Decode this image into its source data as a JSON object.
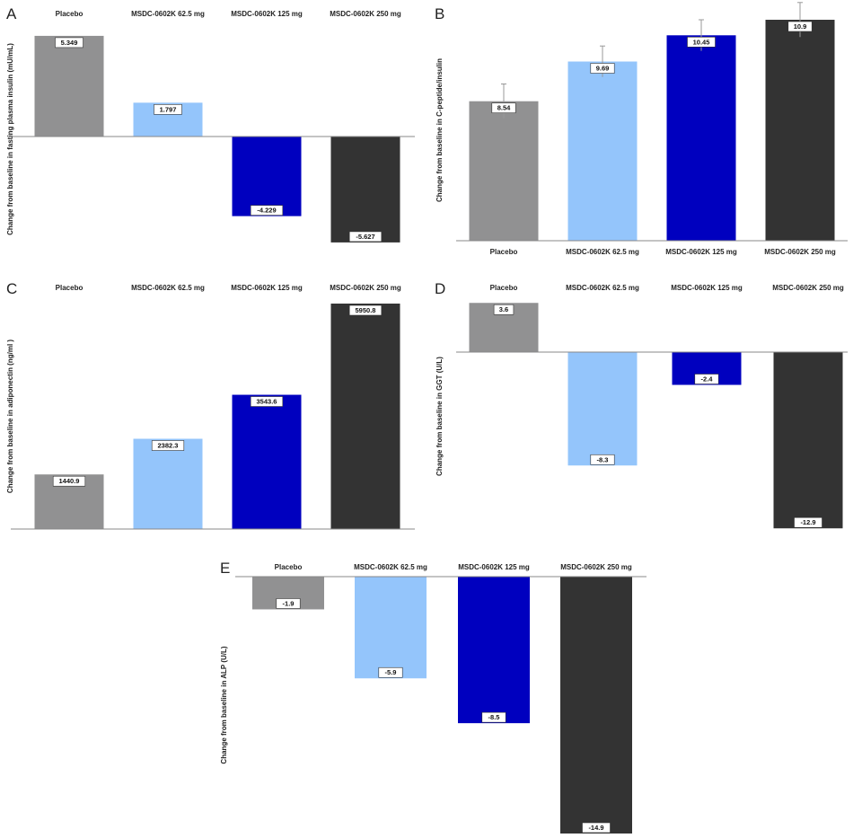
{
  "colors": [
    "#919192",
    "#94c5fb",
    "#0000bf",
    "#333333"
  ],
  "chart_data": [
    {
      "panel": "A",
      "type": "bar",
      "ylabel": "Change from baseline in fasting plasma insulin (mU/mL)",
      "categories": [
        "Placebo",
        "MSDC-0602K 62.5 mg",
        "MSDC-0602K 125 mg",
        "MSDC-0602K 250 mg"
      ],
      "values": [
        5.349,
        1.797,
        -4.229,
        -5.627
      ],
      "value_labels": [
        "5.349",
        "1.797",
        "-4.229",
        "-5.627"
      ],
      "ylim": [
        -5.627,
        5.349
      ],
      "category_labels_position": "top"
    },
    {
      "panel": "B",
      "type": "bar",
      "ylabel": "Change from baseline in C-peptide/insulin",
      "categories": [
        "Placebo",
        "MSDC-0602K 62.5 mg",
        "MSDC-0602K 125 mg",
        "MSDC-0602K 250 mg"
      ],
      "values": [
        8.54,
        9.69,
        10.45,
        10.9
      ],
      "value_labels": [
        "8.54",
        "9.69",
        "10.45",
        "10.9"
      ],
      "errors": [
        0.5,
        0.45,
        0.45,
        0.5
      ],
      "ylim": [
        4.5,
        10.9
      ],
      "category_labels_position": "bottom"
    },
    {
      "panel": "C",
      "type": "bar",
      "ylabel": "Change from baseline in adiponectin (ng/ml )",
      "categories": [
        "Placebo",
        "MSDC-0602K 62.5 mg",
        "MSDC-0602K 125 mg",
        "MSDC-0602K 250 mg"
      ],
      "values": [
        1440.9,
        2382.3,
        3543.6,
        5950.8
      ],
      "value_labels": [
        "1440.9",
        "2382.3",
        "3543.6",
        "5950.8"
      ],
      "ylim": [
        0,
        5950.8
      ],
      "category_labels_position": "top"
    },
    {
      "panel": "D",
      "type": "bar",
      "ylabel": "Change from baseline in GGT (U/L)",
      "categories": [
        "Placebo",
        "MSDC-0602K 62.5 mg",
        "MSDC-0602K 125 mg",
        "MSDC-0602K 250 mg"
      ],
      "values": [
        3.6,
        -8.3,
        -2.4,
        -12.9
      ],
      "value_labels": [
        "3.6",
        "-8.3",
        "-2.4",
        "-12.9"
      ],
      "ylim": [
        -12.9,
        3.6
      ],
      "category_labels_position": "top"
    },
    {
      "panel": "E",
      "type": "bar",
      "ylabel": "Change from baseline in ALP (U/L)",
      "categories": [
        "Placebo",
        "MSDC-0602K 62.5 mg",
        "MSDC-0602K 125 mg",
        "MSDC-0602K 250 mg"
      ],
      "values": [
        -1.9,
        -5.9,
        -8.5,
        -14.9
      ],
      "value_labels": [
        "-1.9",
        "-5.9",
        "-8.5",
        "-14.9"
      ],
      "ylim": [
        -14.9,
        0
      ],
      "category_labels_position": "top"
    }
  ]
}
